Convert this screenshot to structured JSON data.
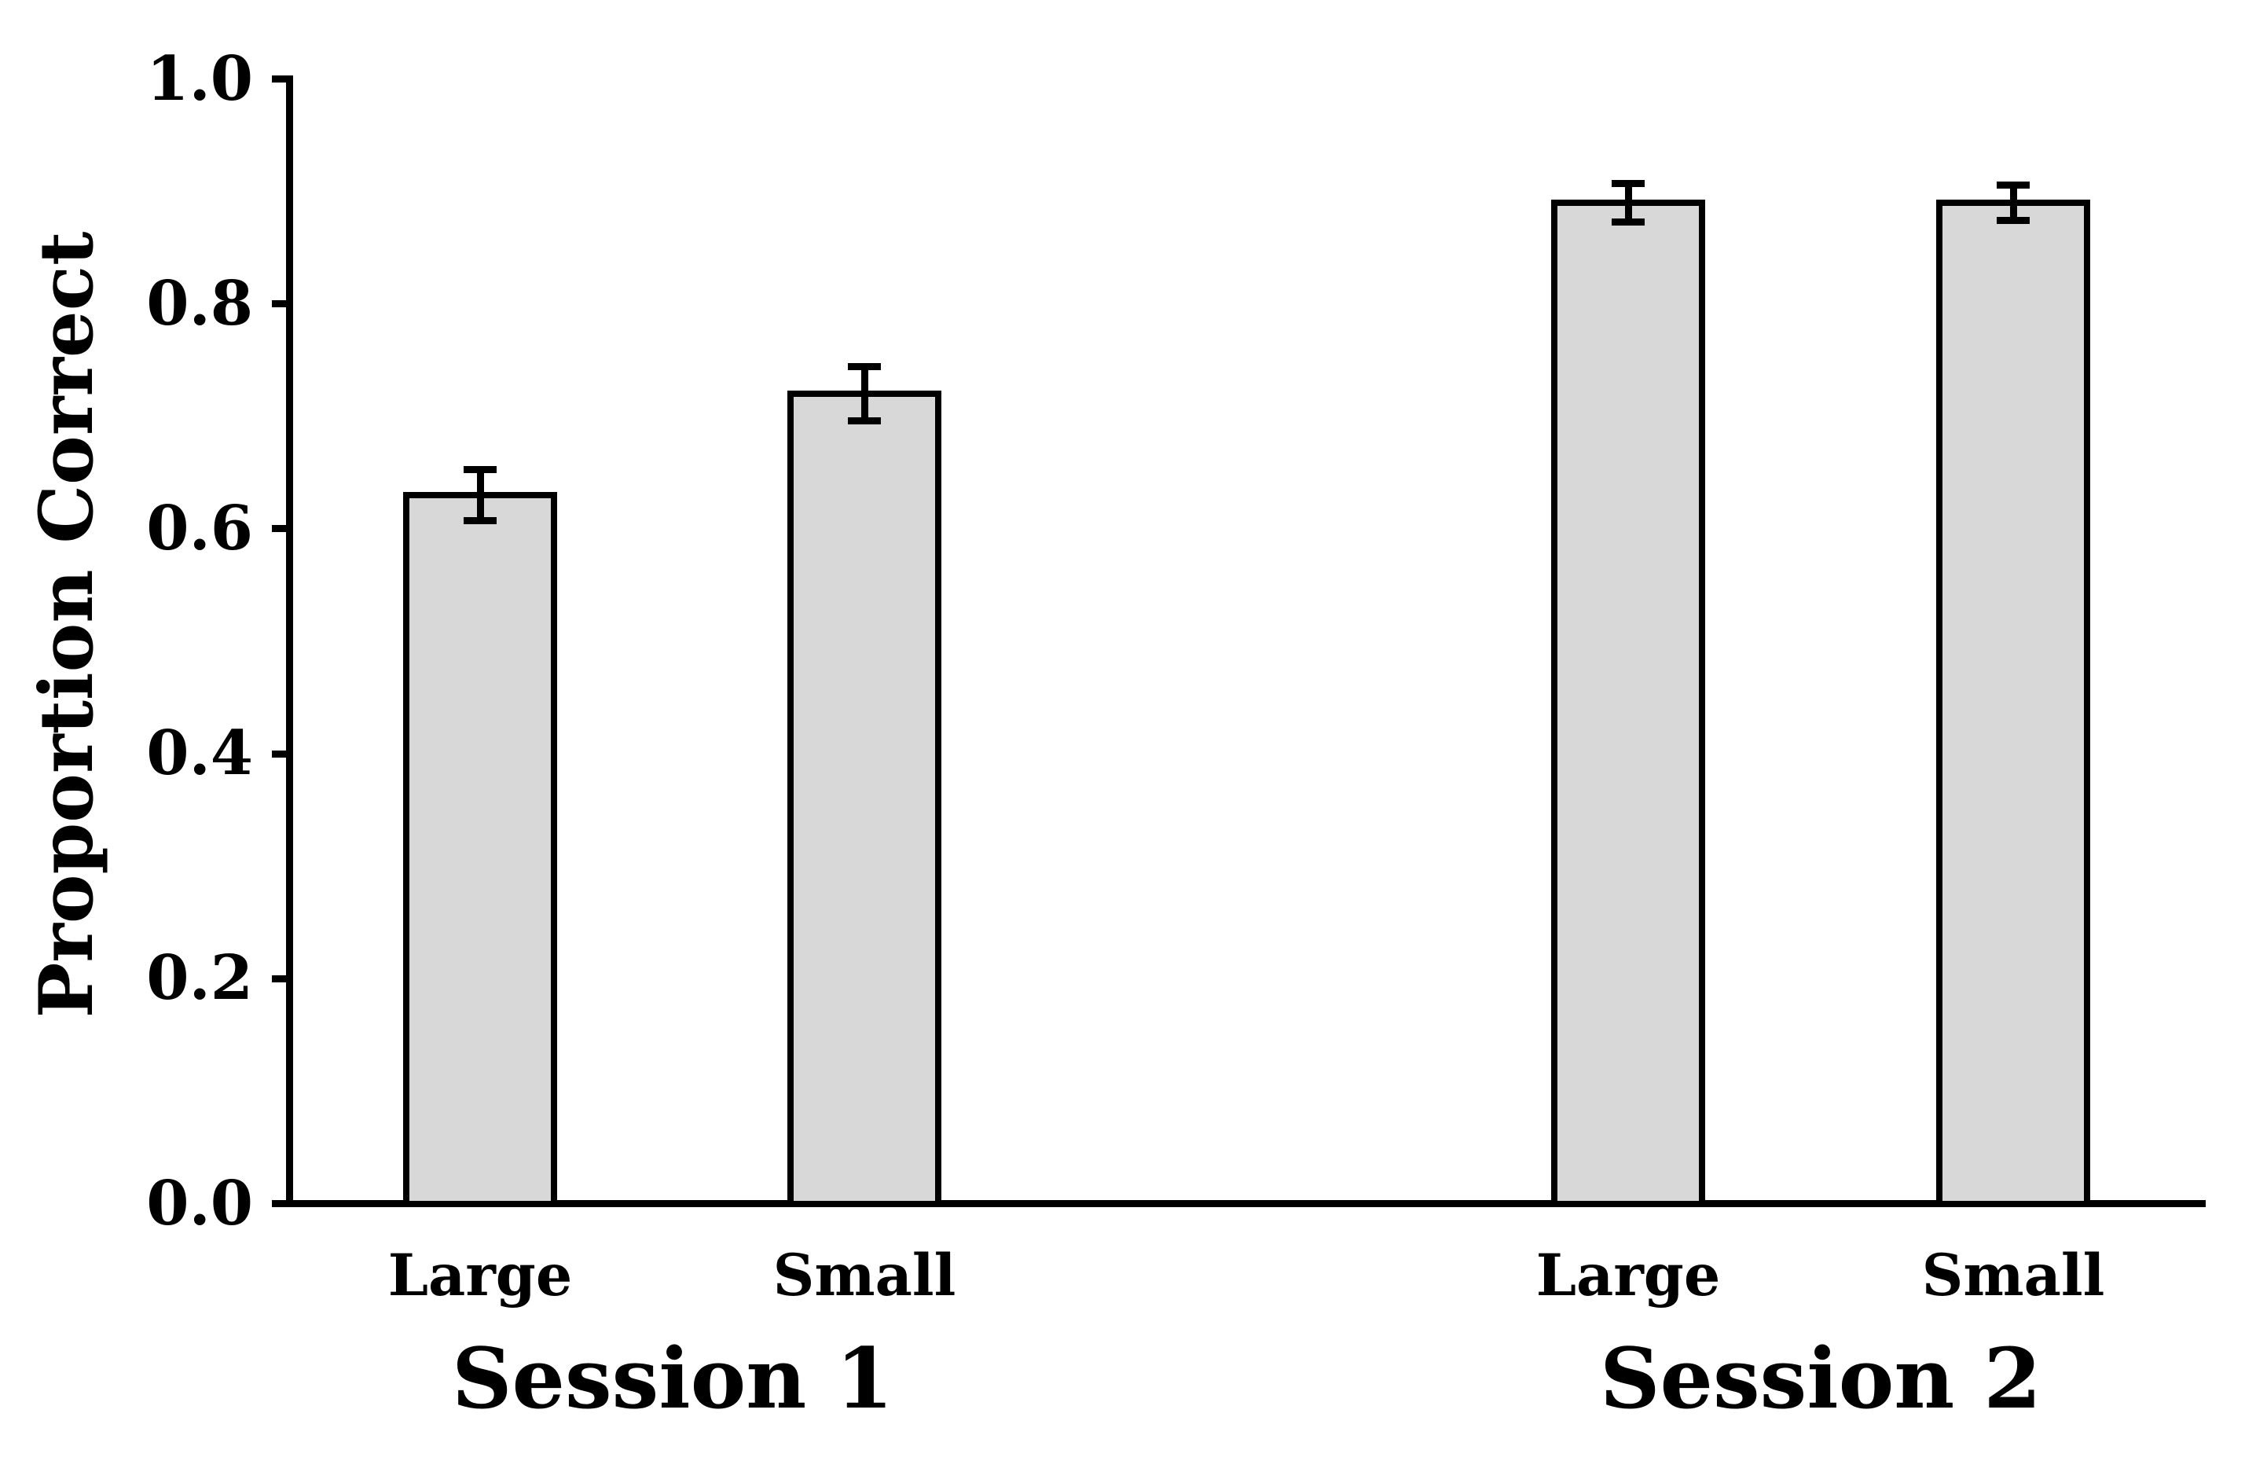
{
  "chart_data": {
    "type": "bar",
    "title": "",
    "ylabel": "Proportion Correct",
    "xlabel": "",
    "ylim": [
      0.0,
      1.0
    ],
    "grid": false,
    "legend": false,
    "bar_fill_color": "#d8d8d8",
    "bar_border_color": "#000000",
    "yticks": [
      {
        "value": 0.0,
        "label": "0.0"
      },
      {
        "value": 0.2,
        "label": "0.2"
      },
      {
        "value": 0.4,
        "label": "0.4"
      },
      {
        "value": 0.6,
        "label": "0.6"
      },
      {
        "value": 0.8,
        "label": "0.8"
      },
      {
        "value": 1.0,
        "label": "1.0"
      }
    ],
    "groups": [
      {
        "label": "Session 1",
        "bars": [
          {
            "label": "Large",
            "value": 0.63,
            "error": 0.023
          },
          {
            "label": "Small",
            "value": 0.72,
            "error": 0.024
          }
        ]
      },
      {
        "label": "Session 2",
        "bars": [
          {
            "label": "Large",
            "value": 0.89,
            "error": 0.017
          },
          {
            "label": "Small",
            "value": 0.89,
            "error": 0.016
          }
        ]
      }
    ]
  }
}
